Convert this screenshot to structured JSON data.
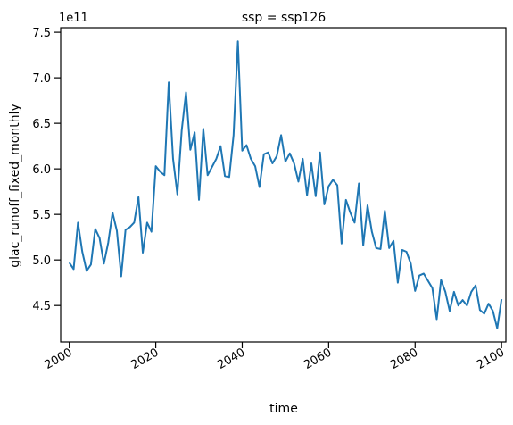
{
  "chart_data": {
    "type": "line",
    "title": "ssp = ssp126",
    "xlabel": "time",
    "ylabel": "glac_runoff_fixed_monthly",
    "y_offset_text": "1e11",
    "xlim": [
      1998,
      2101
    ],
    "ylim": [
      410000000000.0,
      755000000000.0
    ],
    "x_ticks": [
      2000,
      2020,
      2040,
      2060,
      2080,
      2100
    ],
    "y_ticks": [
      450000000000.0,
      500000000000.0,
      550000000000.0,
      600000000000.0,
      650000000000.0,
      700000000000.0,
      750000000000.0
    ],
    "y_tick_labels": [
      "4.5",
      "5.0",
      "5.5",
      "6.0",
      "6.5",
      "7.0",
      "7.5"
    ],
    "line_color": "#1f77b4",
    "grid": false,
    "series": [
      {
        "x": [
          2000,
          2001,
          2002,
          2003,
          2004,
          2005,
          2006,
          2007,
          2008,
          2009,
          2010,
          2011,
          2012,
          2013,
          2014,
          2015,
          2016,
          2017,
          2018,
          2019,
          2020,
          2021,
          2022,
          2023,
          2024,
          2025,
          2026,
          2027,
          2028,
          2029,
          2030,
          2031,
          2032,
          2033,
          2034,
          2035,
          2036,
          2037,
          2038,
          2039,
          2040,
          2041,
          2042,
          2043,
          2044,
          2045,
          2046,
          2047,
          2048,
          2049,
          2050,
          2051,
          2052,
          2053,
          2054,
          2055,
          2056,
          2057,
          2058,
          2059,
          2060,
          2061,
          2062,
          2063,
          2064,
          2065,
          2066,
          2067,
          2068,
          2069,
          2070,
          2071,
          2072,
          2073,
          2074,
          2075,
          2076,
          2077,
          2078,
          2079,
          2080,
          2081,
          2082,
          2083,
          2084,
          2085,
          2086,
          2087,
          2088,
          2089,
          2090,
          2091,
          2092,
          2093,
          2094,
          2095,
          2096,
          2097,
          2098,
          2099,
          2100
        ],
        "values": [
          497000000000.0,
          490000000000.0,
          541000000000.0,
          509000000000.0,
          488000000000.0,
          495000000000.0,
          534000000000.0,
          524000000000.0,
          496000000000.0,
          519000000000.0,
          552000000000.0,
          532000000000.0,
          482000000000.0,
          533000000000.0,
          536000000000.0,
          541000000000.0,
          569000000000.0,
          508000000000.0,
          541000000000.0,
          531000000000.0,
          603000000000.0,
          597000000000.0,
          593000000000.0,
          695000000000.0,
          611000000000.0,
          572000000000.0,
          642000000000.0,
          684000000000.0,
          621000000000.0,
          640000000000.0,
          566000000000.0,
          644000000000.0,
          593000000000.0,
          602000000000.0,
          611000000000.0,
          625000000000.0,
          592000000000.0,
          591000000000.0,
          637000000000.0,
          740000000000.0,
          620000000000.0,
          626000000000.0,
          611000000000.0,
          603000000000.0,
          580000000000.0,
          616000000000.0,
          618000000000.0,
          606000000000.0,
          614000000000.0,
          637000000000.0,
          608000000000.0,
          617000000000.0,
          606000000000.0,
          586000000000.0,
          611000000000.0,
          571000000000.0,
          606000000000.0,
          570000000000.0,
          618000000000.0,
          561000000000.0,
          581000000000.0,
          588000000000.0,
          582000000000.0,
          518000000000.0,
          566000000000.0,
          552000000000.0,
          541000000000.0,
          584000000000.0,
          516000000000.0,
          560000000000.0,
          531000000000.0,
          513000000000.0,
          512000000000.0,
          554000000000.0,
          513000000000.0,
          521000000000.0,
          475000000000.0,
          511000000000.0,
          509000000000.0,
          496000000000.0,
          466000000000.0,
          483000000000.0,
          485000000000.0,
          477000000000.0,
          469000000000.0,
          435000000000.0,
          478000000000.0,
          465000000000.0,
          444000000000.0,
          465000000000.0,
          450000000000.0,
          456000000000.0,
          450000000000.0,
          465000000000.0,
          472000000000.0,
          445000000000.0,
          441000000000.0,
          452000000000.0,
          444000000000.0,
          425000000000.0,
          457000000000.0
        ]
      }
    ]
  }
}
